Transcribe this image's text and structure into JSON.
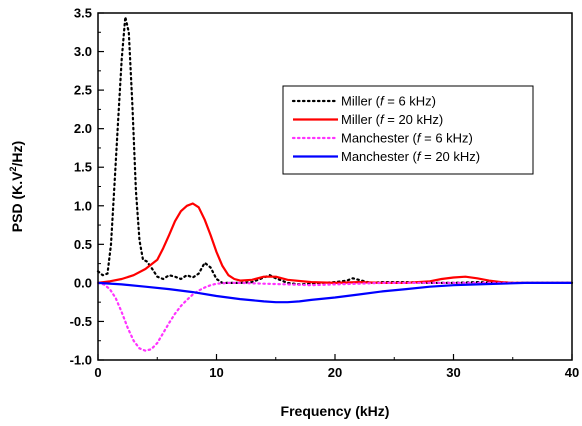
{
  "chart_data": {
    "type": "line",
    "xlabel": "Frequency (kHz)",
    "ylabel_parts": [
      "PSD (K.V",
      "2",
      "/Hz)"
    ],
    "xlim": [
      0,
      40
    ],
    "ylim": [
      -1.0,
      3.5
    ],
    "xticks": [
      0,
      10,
      20,
      30,
      40
    ],
    "xtick_labels": [
      "0",
      "10",
      "20",
      "30",
      "40"
    ],
    "yticks": [
      -1.0,
      -0.5,
      0.0,
      0.5,
      1.0,
      1.5,
      2.0,
      2.5,
      3.0,
      3.5
    ],
    "ytick_labels": [
      "-1.0",
      "-0.5",
      "0.0",
      "0.5",
      "1.0",
      "1.5",
      "2.0",
      "2.5",
      "3.0",
      "3.5"
    ],
    "grid": false,
    "legend_position": "top-right",
    "series": [
      {
        "name_parts": [
          "Miller (",
          "f",
          " = 6 kHz)"
        ],
        "color": "#000000",
        "dash": "dotted",
        "x": [
          0,
          0.4,
          0.8,
          1.1,
          1.4,
          1.7,
          2.0,
          2.3,
          2.6,
          2.9,
          3.2,
          3.5,
          3.8,
          4.1,
          4.5,
          5.0,
          5.5,
          6.0,
          6.5,
          7.0,
          7.5,
          8.0,
          8.5,
          9.0,
          9.5,
          10.0,
          10.5,
          11.0,
          12.0,
          13.0,
          14.0,
          14.5,
          15.0,
          16.0,
          17.0,
          18.0,
          19.0,
          20.0,
          21.0,
          21.5,
          22.0,
          23.0,
          24.0,
          26.0,
          28.0,
          30.0,
          32.0,
          34.0,
          36.0,
          38.0,
          40.0
        ],
        "y": [
          0.15,
          0.1,
          0.12,
          0.5,
          1.3,
          2.1,
          2.9,
          3.45,
          3.25,
          2.3,
          1.2,
          0.55,
          0.3,
          0.28,
          0.2,
          0.08,
          0.05,
          0.1,
          0.08,
          0.05,
          0.1,
          0.07,
          0.12,
          0.26,
          0.2,
          0.05,
          0.0,
          0.0,
          0.0,
          0.01,
          0.07,
          0.1,
          0.06,
          0.0,
          -0.02,
          -0.01,
          0.0,
          0.01,
          0.03,
          0.06,
          0.04,
          0.0,
          0.01,
          0.01,
          0.0,
          0.0,
          0.01,
          0.0,
          0.0,
          0.0,
          0.0
        ]
      },
      {
        "name_parts": [
          "Miller (",
          "f",
          " = 20 kHz)"
        ],
        "color": "#ff0000",
        "dash": "solid",
        "x": [
          0,
          1,
          2,
          3,
          4,
          5,
          5.5,
          6,
          6.5,
          7,
          7.5,
          8,
          8.5,
          9,
          9.5,
          10,
          10.5,
          11,
          11.5,
          12,
          13,
          14,
          15,
          16,
          18,
          20,
          22,
          24,
          26,
          28,
          29,
          30,
          31,
          32,
          33,
          34,
          35,
          36,
          38,
          40
        ],
        "y": [
          0.0,
          0.02,
          0.05,
          0.1,
          0.18,
          0.3,
          0.45,
          0.62,
          0.8,
          0.93,
          1.0,
          1.03,
          0.98,
          0.82,
          0.62,
          0.4,
          0.22,
          0.1,
          0.05,
          0.03,
          0.04,
          0.08,
          0.08,
          0.04,
          0.01,
          0.0,
          0.01,
          0.0,
          0.0,
          0.02,
          0.05,
          0.07,
          0.08,
          0.06,
          0.03,
          0.01,
          0.0,
          0.0,
          0.0,
          0.0
        ]
      },
      {
        "name_parts": [
          "Manchester (",
          "f",
          " = 6 kHz)"
        ],
        "color": "#ff33ff",
        "dash": "dotted",
        "x": [
          0,
          0.5,
          1,
          1.5,
          2,
          2.5,
          3,
          3.5,
          4,
          4.5,
          5,
          5.5,
          6,
          6.5,
          7,
          7.5,
          8,
          8.5,
          9,
          9.5,
          10,
          11,
          12,
          14,
          16,
          18,
          20,
          22,
          24,
          26,
          28,
          30,
          35,
          40
        ],
        "y": [
          0.0,
          -0.02,
          -0.08,
          -0.2,
          -0.38,
          -0.58,
          -0.75,
          -0.85,
          -0.88,
          -0.86,
          -0.78,
          -0.65,
          -0.52,
          -0.4,
          -0.3,
          -0.22,
          -0.15,
          -0.1,
          -0.06,
          -0.03,
          -0.01,
          0.0,
          0.0,
          -0.01,
          -0.02,
          -0.03,
          -0.02,
          -0.01,
          0.0,
          0.0,
          0.0,
          0.0,
          0.0,
          0.0
        ]
      },
      {
        "name_parts": [
          "Manchester (",
          "f",
          " = 20 kHz)"
        ],
        "color": "#0000ff",
        "dash": "solid",
        "x": [
          0,
          2,
          4,
          6,
          8,
          10,
          12,
          14,
          15,
          16,
          17,
          18,
          20,
          22,
          24,
          26,
          28,
          30,
          32,
          34,
          36,
          38,
          40
        ],
        "y": [
          0.0,
          -0.02,
          -0.05,
          -0.08,
          -0.12,
          -0.17,
          -0.21,
          -0.24,
          -0.25,
          -0.25,
          -0.24,
          -0.22,
          -0.19,
          -0.15,
          -0.11,
          -0.08,
          -0.05,
          -0.03,
          -0.02,
          -0.01,
          0.0,
          0.0,
          0.0
        ]
      }
    ]
  }
}
